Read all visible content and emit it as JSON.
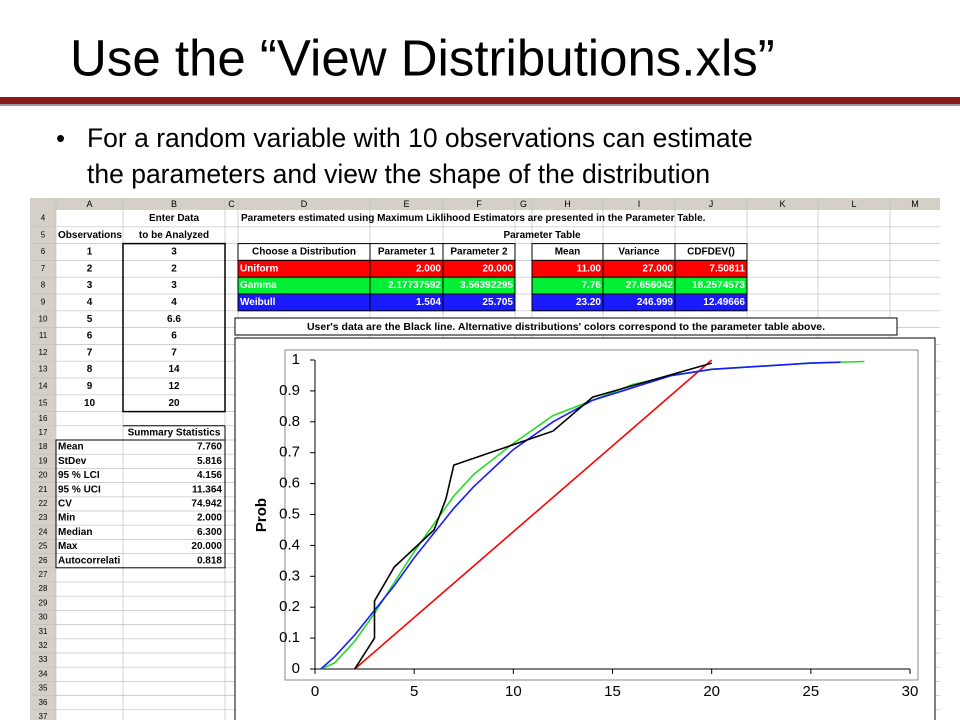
{
  "slide": {
    "title": "Use the “View Distributions.xls”",
    "bullet": [
      "For a random variable with 10 observations can estimate",
      "the parameters and view the shape of the distribution"
    ]
  },
  "sheet": {
    "columns": [
      "A",
      "B",
      "C",
      "D",
      "E",
      "F",
      "G",
      "H",
      "I",
      "J",
      "K",
      "L",
      "M"
    ],
    "note": "Parameters estimated using Maximum Liklihood Estimators are presented in the Parameter Table.",
    "table_title": "Parameter Table",
    "rows": [
      {
        "number": 4,
        "cells": {
          "B": "Enter Data"
        }
      },
      {
        "number": 5,
        "cells": {
          "A": "Observations",
          "B": "to be Analyzed"
        }
      },
      {
        "number": 6,
        "cells": {
          "A": "1",
          "B": "3",
          "D": "Choose a Distribution",
          "E": "Parameter 1",
          "F": "Parameter 2",
          "H": "Mean",
          "I": "Variance",
          "J": "CDFDEV()"
        }
      },
      {
        "number": 7,
        "fill": "#ff0000",
        "cells": {
          "A": "2",
          "B": "2",
          "D": "Uniform",
          "E": "2.000",
          "F": "20.000",
          "H": "11.00",
          "I": "27.000",
          "J": "7.50811"
        }
      },
      {
        "number": 8,
        "fill": "#00ee33",
        "cells": {
          "A": "3",
          "B": "3",
          "D": "Gamma",
          "E": "2.17737592",
          "F": "3.56392295",
          "H": "7.76",
          "I": "27.656042",
          "J": "18.2574573"
        }
      },
      {
        "number": 9,
        "fill": "#1a1aff",
        "cells": {
          "A": "4",
          "B": "4",
          "D": "Weibull",
          "E": "1.504",
          "F": "25.705",
          "H": "23.20",
          "I": "246.999",
          "J": "12.49666"
        }
      },
      {
        "number": 10,
        "cells": {
          "A": "5",
          "B": "6.6"
        }
      },
      {
        "number": 11,
        "cells": {
          "A": "6",
          "B": "6"
        }
      },
      {
        "number": 12,
        "cells": {
          "A": "7",
          "B": "7"
        }
      },
      {
        "number": 13,
        "cells": {
          "A": "8",
          "B": "14"
        }
      },
      {
        "number": 14,
        "cells": {
          "A": "9",
          "B": "12"
        }
      },
      {
        "number": 15,
        "cells": {
          "A": "10",
          "B": "20"
        }
      },
      {
        "number": 16,
        "cells": {}
      },
      {
        "number": 17,
        "cells": {
          "B": "Summary Statistics"
        }
      },
      {
        "number": 18,
        "cells": {
          "A": "Mean",
          "B": "7.760"
        }
      },
      {
        "number": 19,
        "cells": {
          "A": "StDev",
          "B": "5.816"
        }
      },
      {
        "number": 20,
        "cells": {
          "A": "95 % LCI",
          "B": "4.156"
        }
      },
      {
        "number": 21,
        "cells": {
          "A": "95 % UCI",
          "B": "11.364"
        }
      },
      {
        "number": 22,
        "cells": {
          "A": "CV",
          "B": "74.942"
        }
      },
      {
        "number": 23,
        "cells": {
          "A": "Min",
          "B": "2.000"
        }
      },
      {
        "number": 24,
        "cells": {
          "A": "Median",
          "B": "6.300"
        }
      },
      {
        "number": 25,
        "cells": {
          "A": "Max",
          "B": "20.000"
        }
      },
      {
        "number": 26,
        "cells": {
          "A": "Autocorrelati",
          "B": "0.818"
        }
      },
      {
        "number": 27,
        "cells": {}
      },
      {
        "number": 28,
        "cells": {}
      },
      {
        "number": 29,
        "cells": {}
      },
      {
        "number": 30,
        "cells": {}
      },
      {
        "number": 31,
        "cells": {}
      },
      {
        "number": 32,
        "cells": {}
      },
      {
        "number": 33,
        "cells": {}
      },
      {
        "number": 34,
        "cells": {}
      },
      {
        "number": 35,
        "cells": {}
      },
      {
        "number": 36,
        "cells": {}
      },
      {
        "number": 37,
        "cells": {}
      }
    ]
  },
  "chart_data": {
    "type": "line",
    "title": "User's data are the Black line. Alternative distributions' colors correspond to the parameter table above.",
    "ylabel": "Prob",
    "xlim": [
      0,
      30
    ],
    "ylim": [
      0,
      1
    ],
    "xticks": [
      0,
      5,
      10,
      15,
      20,
      25,
      30
    ],
    "yticks": [
      0,
      0.1,
      0.2,
      0.3,
      0.4,
      0.5,
      0.6,
      0.7,
      0.8,
      0.9,
      1
    ],
    "series": [
      {
        "color": "#ff0000",
        "x": [
          2,
          20
        ],
        "values": [
          0,
          1
        ]
      },
      {
        "color": "#22dd22",
        "x": [
          0.3,
          1,
          2,
          3,
          4,
          5,
          6,
          7,
          8,
          10,
          12,
          14,
          16,
          18,
          20,
          25,
          27.7
        ],
        "values": [
          0,
          0.02,
          0.09,
          0.18,
          0.28,
          0.38,
          0.47,
          0.56,
          0.63,
          0.73,
          0.82,
          0.87,
          0.92,
          0.95,
          0.97,
          0.99,
          0.995
        ]
      },
      {
        "color": "#1a1aff",
        "x": [
          0.3,
          1,
          2,
          3,
          4,
          5,
          6,
          7,
          8,
          10,
          12,
          14,
          16,
          18,
          20,
          25,
          26.5
        ],
        "values": [
          0,
          0.04,
          0.11,
          0.19,
          0.27,
          0.36,
          0.44,
          0.52,
          0.59,
          0.71,
          0.8,
          0.87,
          0.91,
          0.95,
          0.97,
          0.99,
          0.993
        ]
      },
      {
        "color": "#000000",
        "x": [
          2,
          3,
          3,
          4,
          6,
          6.6,
          7,
          12,
          14,
          20
        ],
        "values": [
          0,
          0.1,
          0.22,
          0.33,
          0.45,
          0.55,
          0.66,
          0.77,
          0.88,
          0.99
        ]
      }
    ]
  }
}
